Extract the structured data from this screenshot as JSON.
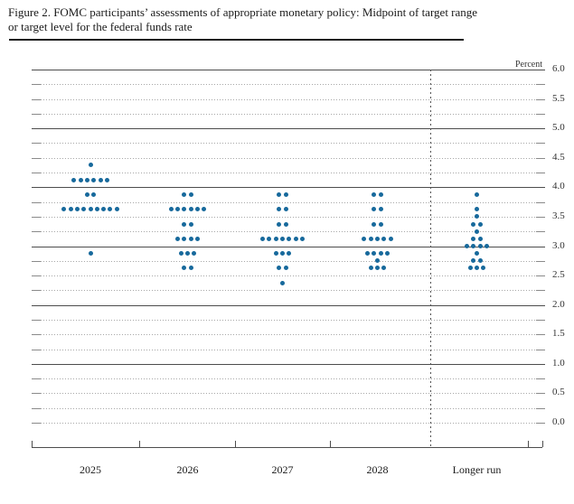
{
  "figure": {
    "title_line1": "Figure 2. FOMC participants’ assessments of appropriate monetary policy: Midpoint of target range",
    "title_line2": "or target level for the federal funds rate"
  },
  "chart_data": {
    "type": "scatter",
    "subtype": "fomc-dot-plot",
    "title": "FOMC participants’ assessments of appropriate monetary policy: Midpoint of target range or target level for the federal funds rate",
    "unit_label": "Percent",
    "ylim": [
      0.0,
      6.0
    ],
    "y_label_step": 0.5,
    "y_gridline_step": 0.25,
    "grid": "dotted, solid at integer values",
    "y_tick_labels": [
      "6.0",
      "5.5",
      "5.0",
      "4.5",
      "4.0",
      "3.5",
      "3.0",
      "2.5",
      "2.0",
      "1.5",
      "1.0",
      "0.5",
      "0.0"
    ],
    "categories": [
      "2025",
      "2026",
      "2027",
      "2028",
      "Longer run"
    ],
    "separator_before_category": "Longer run",
    "dot_color": "#17699c",
    "columns": [
      {
        "label": "2025",
        "dots": [
          {
            "rate": 4.375,
            "count": 1
          },
          {
            "rate": 4.125,
            "count": 6
          },
          {
            "rate": 3.875,
            "count": 2
          },
          {
            "rate": 3.625,
            "count": 9
          },
          {
            "rate": 2.875,
            "count": 1
          }
        ]
      },
      {
        "label": "2026",
        "dots": [
          {
            "rate": 3.875,
            "count": 2
          },
          {
            "rate": 3.625,
            "count": 6
          },
          {
            "rate": 3.375,
            "count": 2
          },
          {
            "rate": 3.125,
            "count": 4
          },
          {
            "rate": 2.875,
            "count": 3
          },
          {
            "rate": 2.625,
            "count": 2
          }
        ]
      },
      {
        "label": "2027",
        "dots": [
          {
            "rate": 3.875,
            "count": 2
          },
          {
            "rate": 3.625,
            "count": 2
          },
          {
            "rate": 3.375,
            "count": 2
          },
          {
            "rate": 3.125,
            "count": 7
          },
          {
            "rate": 2.875,
            "count": 3
          },
          {
            "rate": 2.625,
            "count": 2
          },
          {
            "rate": 2.375,
            "count": 1
          }
        ]
      },
      {
        "label": "2028",
        "dots": [
          {
            "rate": 3.875,
            "count": 2
          },
          {
            "rate": 3.625,
            "count": 2
          },
          {
            "rate": 3.375,
            "count": 2
          },
          {
            "rate": 3.125,
            "count": 5
          },
          {
            "rate": 2.875,
            "count": 4
          },
          {
            "rate": 2.75,
            "count": 1
          },
          {
            "rate": 2.625,
            "count": 3
          }
        ]
      },
      {
        "label": "Longer run",
        "dots": [
          {
            "rate": 3.875,
            "count": 1
          },
          {
            "rate": 3.625,
            "count": 1
          },
          {
            "rate": 3.5,
            "count": 1
          },
          {
            "rate": 3.375,
            "count": 2
          },
          {
            "rate": 3.25,
            "count": 1
          },
          {
            "rate": 3.125,
            "count": 2
          },
          {
            "rate": 3.0,
            "count": 4
          },
          {
            "rate": 2.875,
            "count": 1
          },
          {
            "rate": 2.75,
            "count": 2
          },
          {
            "rate": 2.625,
            "count": 3
          }
        ]
      }
    ]
  }
}
